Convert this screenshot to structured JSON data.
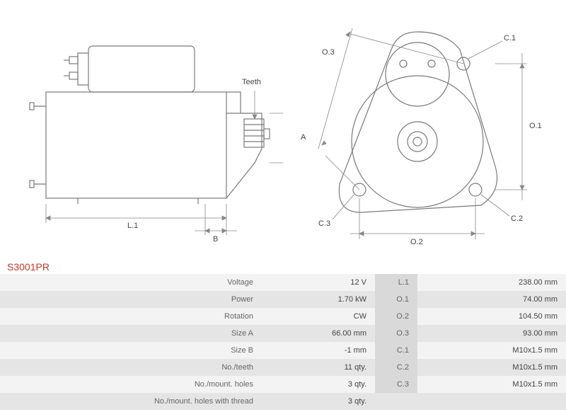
{
  "product_code": "S3001PR",
  "diagram": {
    "labels": {
      "teeth": "Teeth",
      "A": "A",
      "B": "B",
      "L1": "L.1",
      "O1": "O.1",
      "O2": "O.2",
      "O3": "O.3",
      "C1": "C.1",
      "C2": "C.2",
      "C3": "C.3"
    },
    "stroke_color": "#7a7a7a",
    "stroke_width": 1.2,
    "dim_stroke": "#888",
    "background": "#ffffff"
  },
  "specs_left": [
    {
      "label": "Voltage",
      "value": "12 V"
    },
    {
      "label": "Power",
      "value": "1.70 kW"
    },
    {
      "label": "Rotation",
      "value": "CW"
    },
    {
      "label": "Size A",
      "value": "66.00 mm"
    },
    {
      "label": "Size B",
      "value": "-1 mm"
    },
    {
      "label": "No./teeth",
      "value": "11 qty."
    },
    {
      "label": "No./mount. holes",
      "value": "3 qty."
    },
    {
      "label": "No./mount. holes with thread",
      "value": "3 qty."
    }
  ],
  "specs_right": [
    {
      "label": "L.1",
      "value": "238.00 mm"
    },
    {
      "label": "O.1",
      "value": "74.00 mm"
    },
    {
      "label": "O.2",
      "value": "104.50 mm"
    },
    {
      "label": "O.3",
      "value": "93.00 mm"
    },
    {
      "label": "C.1",
      "value": "M10x1.5 mm"
    },
    {
      "label": "C.2",
      "value": "M10x1.5 mm"
    },
    {
      "label": "C.3",
      "value": "M10x1.5 mm"
    },
    {
      "label": "",
      "value": ""
    }
  ],
  "colors": {
    "accent": "#c1392b",
    "row_odd": "#f3f3f3",
    "row_even": "#e5e5e5",
    "row_sub_label": "#d9d9d9",
    "text": "#555555"
  }
}
